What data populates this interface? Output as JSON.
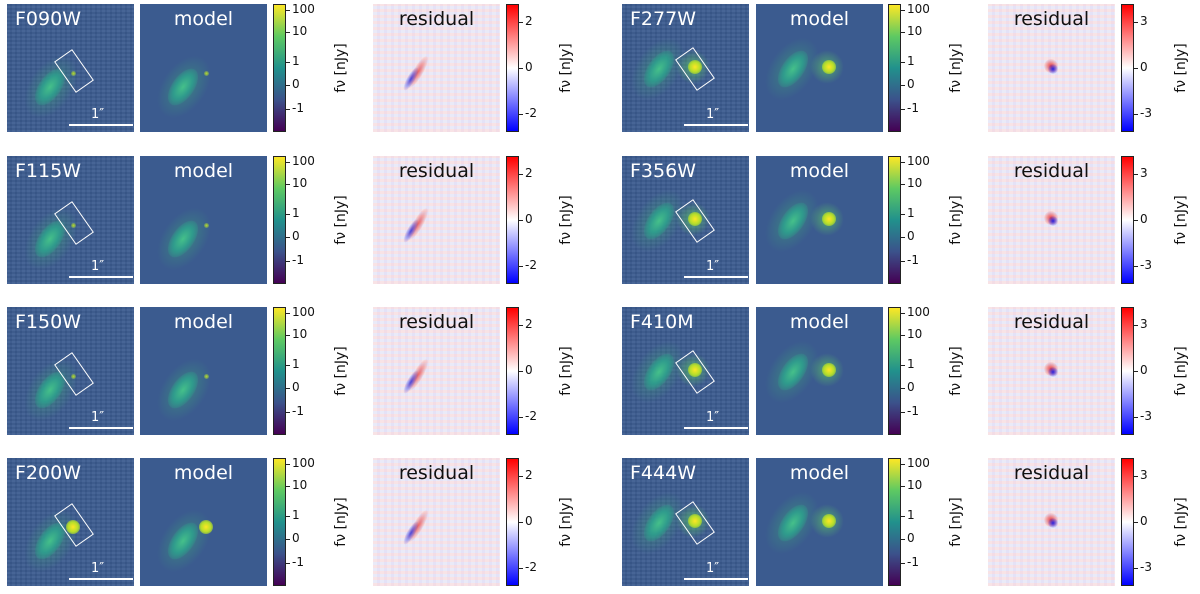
{
  "figure": {
    "panel_labels": {
      "model": "model",
      "residual": "residual"
    },
    "scalebar_label": "1″",
    "colorbar_label": "fν [nJy]",
    "flux_ticks": [
      "100",
      "10",
      "1",
      "0",
      "-1"
    ],
    "residual_ticks_short": [
      "2",
      "0",
      "-2"
    ],
    "residual_ticks_long": [
      "3",
      "0",
      "-3"
    ],
    "colormaps": {
      "image": "viridis",
      "residual": "bwr"
    },
    "filters_left": [
      "F090W",
      "F115W",
      "F150W",
      "F200W"
    ],
    "filters_right": [
      "F277W",
      "F356W",
      "F410M",
      "F444W"
    ]
  }
}
